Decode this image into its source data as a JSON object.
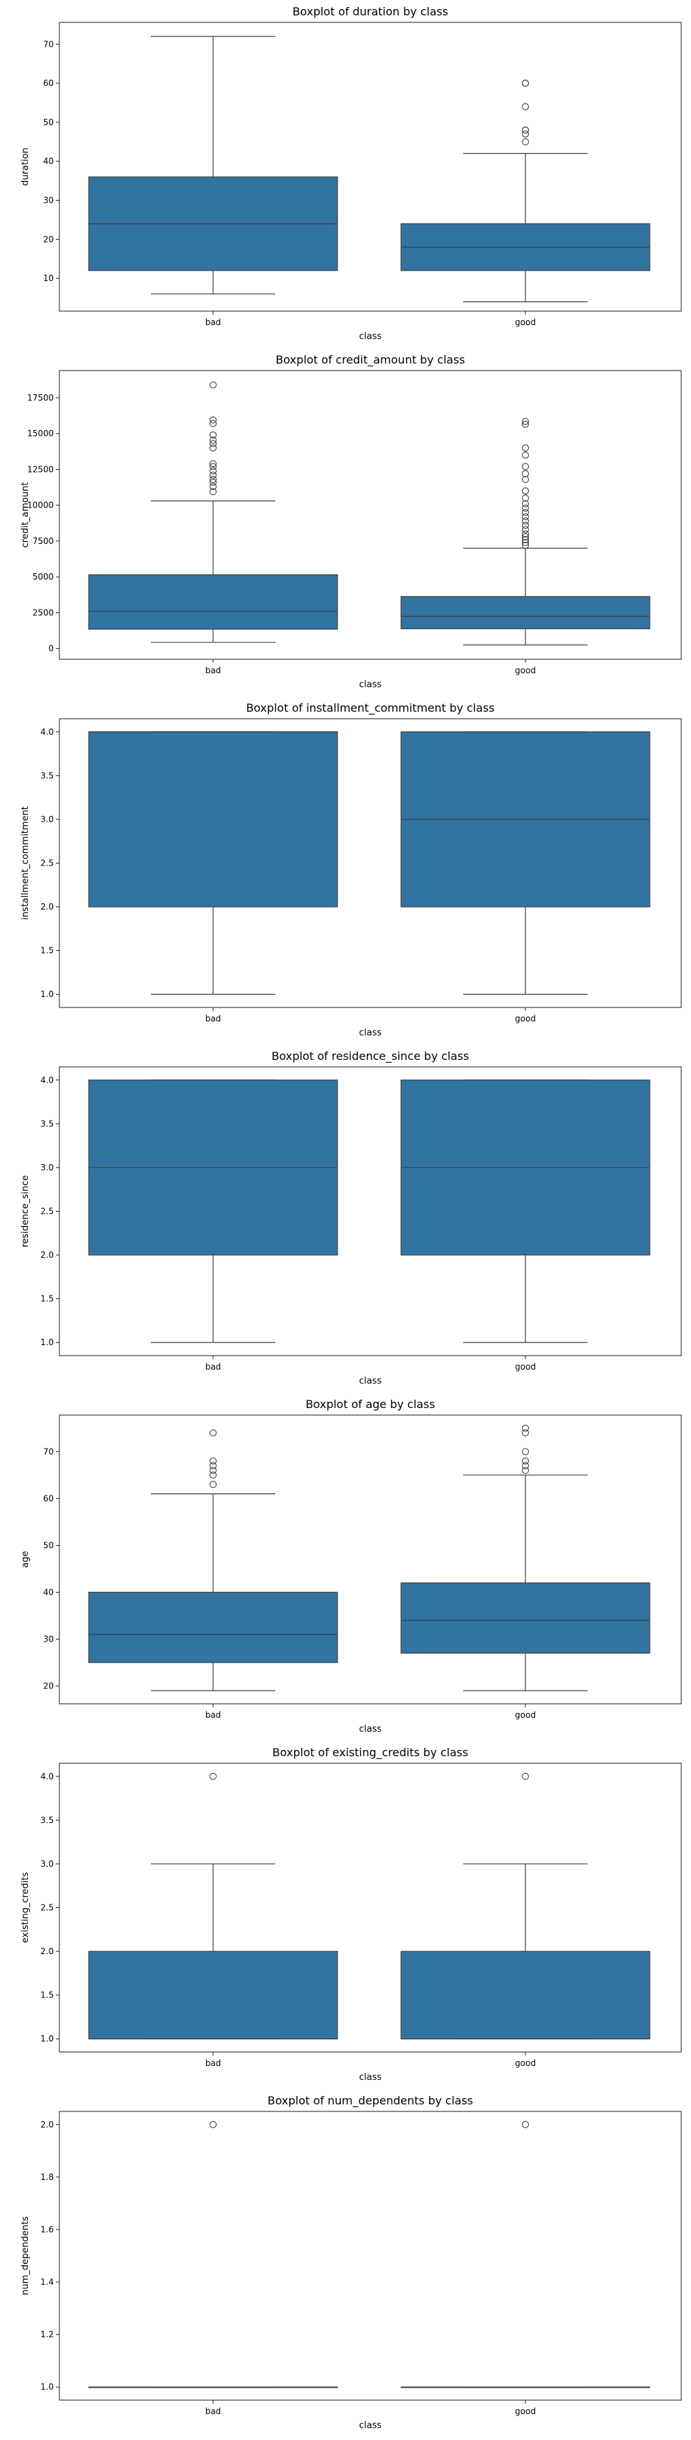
{
  "chart_data": [
    {
      "type": "boxplot",
      "title": "Boxplot of duration by class",
      "xlabel": "class",
      "ylabel": "duration",
      "categories": [
        "bad",
        "good"
      ],
      "ylim": [
        1.6,
        75.6
      ],
      "yticks": [
        10,
        20,
        30,
        40,
        50,
        60,
        70
      ],
      "ytick_labels": [
        "10",
        "20",
        "30",
        "40",
        "50",
        "60",
        "70"
      ],
      "boxes": [
        {
          "category": "bad",
          "whisker_low": 6,
          "q1": 12,
          "median": 24,
          "q3": 36,
          "whisker_high": 72,
          "outliers": []
        },
        {
          "category": "good",
          "whisker_low": 4,
          "q1": 12,
          "median": 18,
          "q3": 24,
          "whisker_high": 42,
          "outliers": [
            45,
            47,
            48,
            48,
            54,
            60,
            60
          ]
        }
      ],
      "color": "#3274a1"
    },
    {
      "type": "boxplot",
      "title": "Boxplot of credit_amount by class",
      "xlabel": "class",
      "ylabel": "credit_amount",
      "categories": [
        "bad",
        "good"
      ],
      "ylim": [
        -750,
        19400
      ],
      "yticks": [
        0,
        2500,
        5000,
        7500,
        10000,
        12500,
        15000,
        17500
      ],
      "ytick_labels": [
        "0",
        "2500",
        "5000",
        "7500",
        "10000",
        "12500",
        "15000",
        "17500"
      ],
      "boxes": [
        {
          "category": "bad",
          "whisker_low": 430,
          "q1": 1350,
          "median": 2600,
          "q3": 5150,
          "whisker_high": 10300,
          "outliers": [
            10950,
            11300,
            11600,
            11800,
            12100,
            12400,
            12700,
            12900,
            14000,
            14300,
            14550,
            14900,
            15700,
            15950,
            18400
          ]
        },
        {
          "category": "good",
          "whisker_low": 250,
          "q1": 1380,
          "median": 2250,
          "q3": 3630,
          "whisker_high": 7000,
          "outliers": [
            7200,
            7400,
            7600,
            7800,
            8000,
            8300,
            8600,
            8900,
            9200,
            9500,
            9800,
            10100,
            10500,
            11000,
            11800,
            12200,
            12700,
            13500,
            14000,
            15650,
            15850
          ]
        }
      ],
      "color": "#3274a1"
    },
    {
      "type": "boxplot",
      "title": "Boxplot of installment_commitment by class",
      "xlabel": "class",
      "ylabel": "installment_commitment",
      "categories": [
        "bad",
        "good"
      ],
      "ylim": [
        0.85,
        4.15
      ],
      "yticks": [
        1.0,
        1.5,
        2.0,
        2.5,
        3.0,
        3.5,
        4.0
      ],
      "ytick_labels": [
        "1.0",
        "1.5",
        "2.0",
        "2.5",
        "3.0",
        "3.5",
        "4.0"
      ],
      "boxes": [
        {
          "category": "bad",
          "whisker_low": 1,
          "q1": 2,
          "median": 4,
          "q3": 4,
          "whisker_high": 4,
          "outliers": []
        },
        {
          "category": "good",
          "whisker_low": 1,
          "q1": 2,
          "median": 3,
          "q3": 4,
          "whisker_high": 4,
          "outliers": []
        }
      ],
      "color": "#3274a1"
    },
    {
      "type": "boxplot",
      "title": "Boxplot of residence_since by class",
      "xlabel": "class",
      "ylabel": "residence_since",
      "categories": [
        "bad",
        "good"
      ],
      "ylim": [
        0.85,
        4.15
      ],
      "yticks": [
        1.0,
        1.5,
        2.0,
        2.5,
        3.0,
        3.5,
        4.0
      ],
      "ytick_labels": [
        "1.0",
        "1.5",
        "2.0",
        "2.5",
        "3.0",
        "3.5",
        "4.0"
      ],
      "boxes": [
        {
          "category": "bad",
          "whisker_low": 1,
          "q1": 2,
          "median": 3,
          "q3": 4,
          "whisker_high": 4,
          "outliers": []
        },
        {
          "category": "good",
          "whisker_low": 1,
          "q1": 2,
          "median": 3,
          "q3": 4,
          "whisker_high": 4,
          "outliers": []
        }
      ],
      "color": "#3274a1"
    },
    {
      "type": "boxplot",
      "title": "Boxplot of age by class",
      "xlabel": "class",
      "ylabel": "age",
      "categories": [
        "bad",
        "good"
      ],
      "ylim": [
        16.2,
        77.8
      ],
      "yticks": [
        20,
        30,
        40,
        50,
        60,
        70
      ],
      "ytick_labels": [
        "20",
        "30",
        "40",
        "50",
        "60",
        "70"
      ],
      "boxes": [
        {
          "category": "bad",
          "whisker_low": 19,
          "q1": 25,
          "median": 31,
          "q3": 40,
          "whisker_high": 61,
          "outliers": [
            63,
            65,
            66,
            67,
            68,
            74
          ]
        },
        {
          "category": "good",
          "whisker_low": 19,
          "q1": 27,
          "median": 34,
          "q3": 42,
          "whisker_high": 65,
          "outliers": [
            66,
            67,
            68,
            70,
            74,
            75
          ]
        }
      ],
      "color": "#3274a1"
    },
    {
      "type": "boxplot",
      "title": "Boxplot of existing_credits by class",
      "xlabel": "class",
      "ylabel": "existing_credits",
      "categories": [
        "bad",
        "good"
      ],
      "ylim": [
        0.85,
        4.15
      ],
      "yticks": [
        1.0,
        1.5,
        2.0,
        2.5,
        3.0,
        3.5,
        4.0
      ],
      "ytick_labels": [
        "1.0",
        "1.5",
        "2.0",
        "2.5",
        "3.0",
        "3.5",
        "4.0"
      ],
      "boxes": [
        {
          "category": "bad",
          "whisker_low": 1,
          "q1": 1,
          "median": 1,
          "q3": 2,
          "whisker_high": 3,
          "outliers": [
            4
          ]
        },
        {
          "category": "good",
          "whisker_low": 1,
          "q1": 1,
          "median": 1,
          "q3": 2,
          "whisker_high": 3,
          "outliers": [
            4
          ]
        }
      ],
      "color": "#3274a1"
    },
    {
      "type": "boxplot",
      "title": "Boxplot of num_dependents by class",
      "xlabel": "class",
      "ylabel": "num_dependents",
      "categories": [
        "bad",
        "good"
      ],
      "ylim": [
        0.95,
        2.05
      ],
      "yticks": [
        1.0,
        1.2,
        1.4,
        1.6,
        1.8,
        2.0
      ],
      "ytick_labels": [
        "1.0",
        "1.2",
        "1.4",
        "1.6",
        "1.8",
        "2.0"
      ],
      "boxes": [
        {
          "category": "bad",
          "whisker_low": 1,
          "q1": 1,
          "median": 1,
          "q3": 1,
          "whisker_high": 1,
          "outliers": [
            2
          ]
        },
        {
          "category": "good",
          "whisker_low": 1,
          "q1": 1,
          "median": 1,
          "q3": 1,
          "whisker_high": 1,
          "outliers": [
            2
          ]
        }
      ],
      "color": "#3274a1"
    }
  ]
}
